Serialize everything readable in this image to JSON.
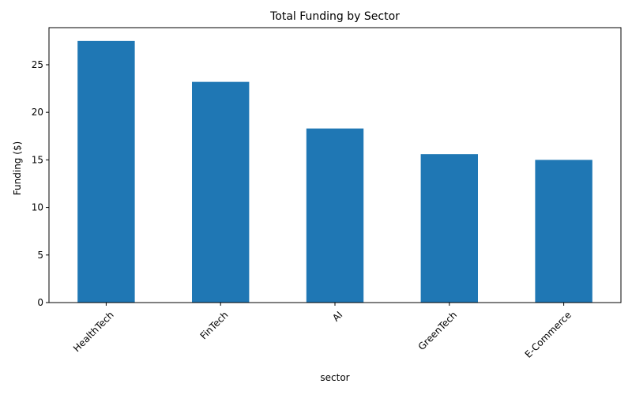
{
  "chart_data": {
    "type": "bar",
    "title": "Total Funding by Sector",
    "xlabel": "sector",
    "ylabel": "Funding ($)",
    "categories": [
      "HealthTech",
      "FinTech",
      "AI",
      "GreenTech",
      "E-Commerce"
    ],
    "values": [
      27.5,
      23.2,
      18.3,
      15.6,
      15.0
    ],
    "ylim": [
      0,
      28.9
    ],
    "yticks": [
      0,
      5,
      10,
      15,
      20,
      25
    ],
    "ytick_labels": [
      "0",
      "5",
      "10",
      "15",
      "20",
      "25"
    ],
    "xtick_rotation": 45,
    "bar_color": "#1f77b4",
    "grid": false,
    "legend": "none"
  }
}
